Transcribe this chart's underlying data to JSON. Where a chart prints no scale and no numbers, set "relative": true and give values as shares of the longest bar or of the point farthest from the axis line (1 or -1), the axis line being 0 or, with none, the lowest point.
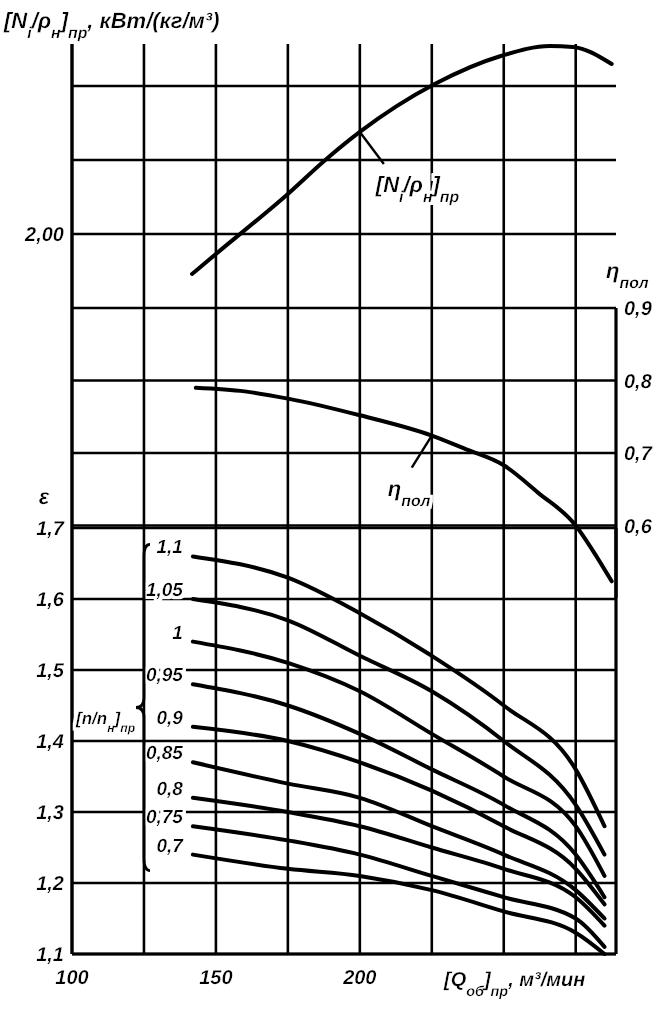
{
  "chart_data": [
    {
      "type": "line",
      "ylabel": "[N$_{i}$/ρ$_{н}$]$_{пр}$, кВт/(кг/м³)",
      "relative": true,
      "xlim": [
        100,
        289
      ],
      "xticks": [
        100,
        {
          "value": 125,
          "label": null
        },
        150,
        {
          "value": 175,
          "label": null
        },
        200,
        {
          "value": 225,
          "label": null
        },
        {
          "value": 250,
          "label": null
        },
        {
          "value": 275,
          "label": null
        }
      ],
      "tick_labels": false,
      "grid": true,
      "annotations": [
        "2,00"
      ],
      "series": [
        {
          "name": "[N$_{i}$/ρ$_{н}$]$_{пр}$",
          "color": "#000000",
          "x": [
            141.7,
            150,
            175,
            188,
            200,
            226,
            249,
            266,
            274,
            287.5
          ],
          "values": [
            0,
            0.088,
            0.351,
            0.5,
            0.623,
            0.833,
            0.956,
            1,
            0.996,
            0.921
          ]
        }
      ]
    },
    {
      "type": "line",
      "ylabel": "η$_{пол}$",
      "ylim": [
        0.5,
        0.9
      ],
      "yticks": [
        {
          "value": 0.6,
          "label": "0,6"
        },
        {
          "value": 0.7,
          "label": "0,7"
        },
        {
          "value": 0.8,
          "label": "0,8"
        },
        {
          "value": 0.9,
          "label": "0,9"
        }
      ],
      "xlim": [
        100,
        289
      ],
      "xticks": [
        100,
        {
          "value": 125,
          "label": null
        },
        150,
        {
          "value": 175,
          "label": null
        },
        200,
        {
          "value": 225,
          "label": null
        },
        {
          "value": 250,
          "label": null
        },
        {
          "value": 275,
          "label": null
        }
      ],
      "tick_labels": "y",
      "grid": true,
      "series": [
        {
          "name": "η$_{пол}$",
          "color": "#000000",
          "x": [
            143,
            160,
            175,
            200,
            225,
            237,
            250,
            262,
            275,
            281,
            287.5
          ],
          "values": [
            0.79,
            0.785,
            0.775,
            0.752,
            0.724,
            0.705,
            0.683,
            0.645,
            0.6,
            0.565,
            0.523
          ]
        }
      ]
    },
    {
      "type": "line",
      "ylabel": "ε",
      "xlabel": "[Q$_{об}$]$_{пр}$, м³/мин",
      "legend_title": "[n/n$_{н}$]$_{пр}$",
      "xlim": [
        100,
        289
      ],
      "xticks": [
        100,
        {
          "value": 125,
          "label": null
        },
        150,
        {
          "value": 175,
          "label": null
        },
        200,
        {
          "value": 225,
          "label": null
        },
        {
          "value": 250,
          "label": null
        },
        {
          "value": 275,
          "label": null
        }
      ],
      "ylim": [
        1.1,
        1.7
      ],
      "yticks": [
        {
          "value": 1.1,
          "label": "1,1"
        },
        {
          "value": 1.2,
          "label": "1,2"
        },
        {
          "value": 1.3,
          "label": "1,3"
        },
        {
          "value": 1.4,
          "label": "1,4"
        },
        {
          "value": 1.5,
          "label": "1,5"
        },
        {
          "value": 1.6,
          "label": "1,6"
        },
        {
          "value": 1.7,
          "label": "1,7"
        }
      ],
      "grid": true,
      "x": [
        142,
        175,
        200,
        225,
        250,
        275,
        285
      ],
      "series": [
        {
          "name": "1,1",
          "color": "#000000",
          "values": [
            1.66,
            1.63,
            1.58,
            1.52,
            1.45,
            1.36,
            1.28
          ]
        },
        {
          "name": "1,05",
          "color": "#000000",
          "values": [
            1.6,
            1.57,
            1.52,
            1.47,
            1.4,
            1.31,
            1.24
          ]
        },
        {
          "name": "1",
          "color": "#000000",
          "values": [
            1.54,
            1.51,
            1.47,
            1.41,
            1.35,
            1.28,
            1.21
          ]
        },
        {
          "name": "0,95",
          "color": "#000000",
          "values": [
            1.48,
            1.45,
            1.41,
            1.36,
            1.31,
            1.24,
            1.18
          ]
        },
        {
          "name": "0,9",
          "color": "#000000",
          "values": [
            1.42,
            1.4,
            1.37,
            1.33,
            1.28,
            1.22,
            1.17
          ]
        },
        {
          "name": "0,85",
          "color": "#000000",
          "values": [
            1.37,
            1.34,
            1.32,
            1.28,
            1.24,
            1.19,
            1.15
          ]
        },
        {
          "name": "0,8",
          "color": "#000000",
          "values": [
            1.32,
            1.3,
            1.28,
            1.25,
            1.22,
            1.18,
            1.14
          ]
        },
        {
          "name": "0,75",
          "color": "#000000",
          "values": [
            1.28,
            1.26,
            1.24,
            1.21,
            1.18,
            1.15,
            1.11
          ]
        },
        {
          "name": "0,7",
          "color": "#000000",
          "values": [
            1.24,
            1.22,
            1.21,
            1.19,
            1.16,
            1.13,
            1.1
          ]
        }
      ]
    }
  ]
}
